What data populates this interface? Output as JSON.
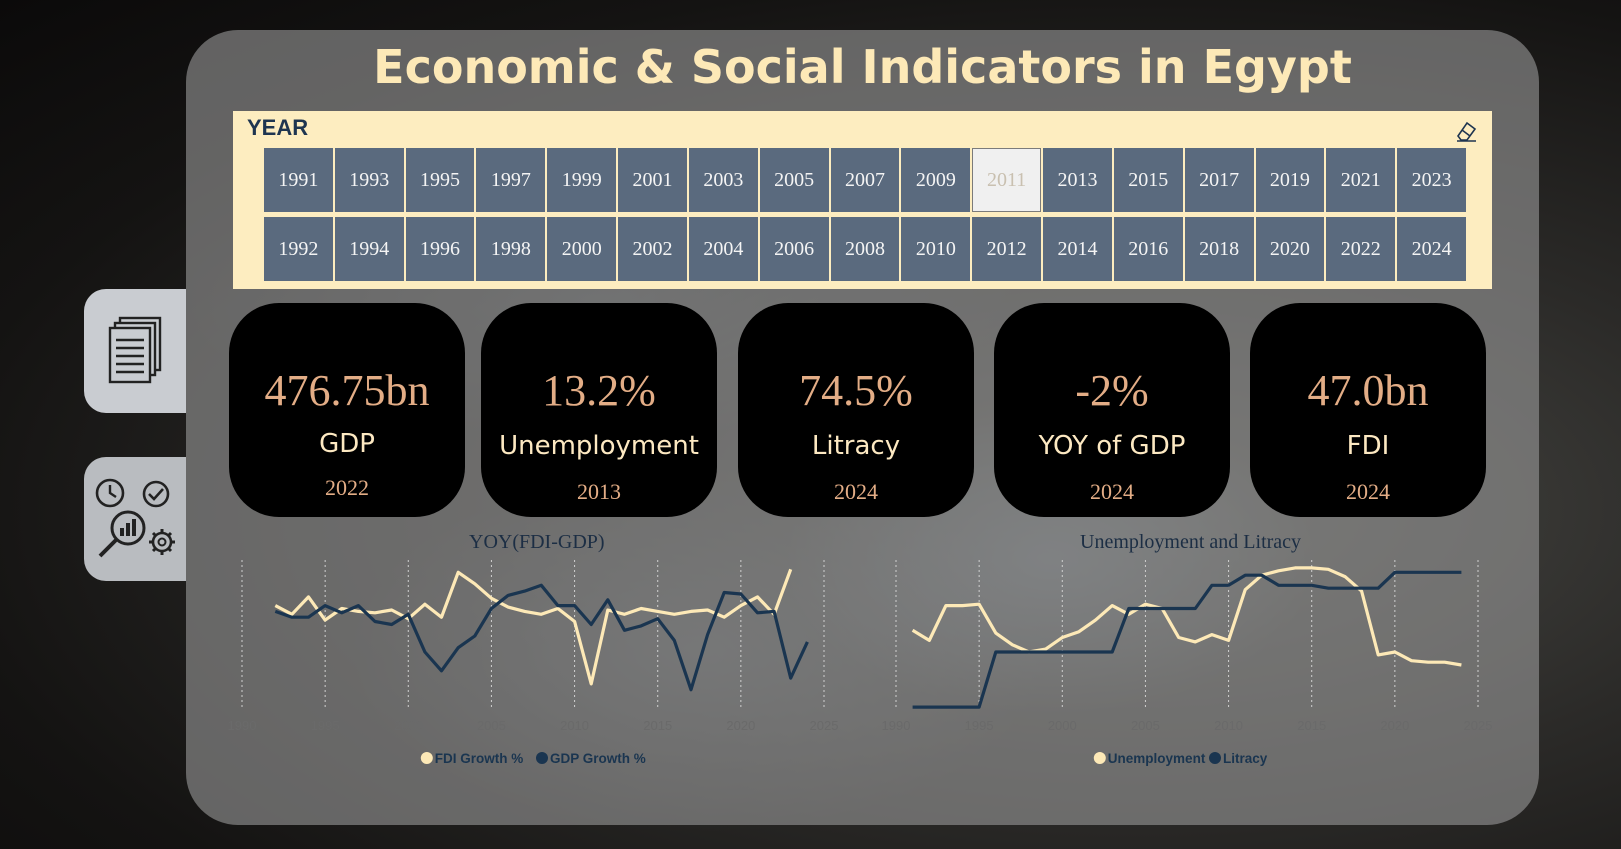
{
  "title": "Economic & Social Indicators in Egypt",
  "slicer": {
    "label": "YEAR",
    "selected": "2011",
    "years_row1": [
      "1991",
      "1993",
      "1995",
      "1997",
      "1999",
      "2001",
      "2003",
      "2005",
      "2007",
      "2009",
      "2011",
      "2013",
      "2015",
      "2017",
      "2019",
      "2021",
      "2023"
    ],
    "years_row2": [
      "1992",
      "1994",
      "1996",
      "1998",
      "2000",
      "2002",
      "2004",
      "2006",
      "2008",
      "2010",
      "2012",
      "2014",
      "2016",
      "2018",
      "2020",
      "2022",
      "2024"
    ]
  },
  "nav": {
    "tab1_icon": "document-pages-icon",
    "tab2_icon": "analytics-settings-icon"
  },
  "kpis": [
    {
      "value": "476.75bn",
      "label": "GDP",
      "year": "2022"
    },
    {
      "value": "13.2%",
      "label": "Unemployment",
      "year": "2013"
    },
    {
      "value": "74.5%",
      "label": "Litracy",
      "year": "2024"
    },
    {
      "value": "-2%",
      "label": "YOY of GDP",
      "year": "2024"
    },
    {
      "value": "47.0bn",
      "label": "FDI",
      "year": "2024"
    }
  ],
  "colors": {
    "series_light": "#fde9b7",
    "series_dark": "#1a3550",
    "kpi_value": "#e3ad86",
    "title": "#fde9b7"
  },
  "chart_data": [
    {
      "type": "line",
      "title": "YOY(FDI-GDP)",
      "x": [
        1992,
        1993,
        1994,
        1995,
        1996,
        1997,
        1998,
        1999,
        2000,
        2001,
        2002,
        2003,
        2004,
        2005,
        2006,
        2007,
        2008,
        2009,
        2010,
        2011,
        2012,
        2013,
        2014,
        2015,
        2016,
        2017,
        2018,
        2019,
        2020,
        2021,
        2022,
        2023,
        2024
      ],
      "xticks": [
        1990,
        1995,
        2000,
        2005,
        2010,
        2015,
        2020,
        2025
      ],
      "xlim": [
        1990,
        2025
      ],
      "ylim": [
        0,
        100
      ],
      "series": [
        {
          "name": "FDI Growth %",
          "color": "#fde9b7",
          "values": [
            72,
            66,
            78,
            62,
            70,
            68,
            67,
            69,
            63,
            73,
            64,
            95,
            87,
            77,
            71,
            68,
            66,
            70,
            61,
            18,
            69,
            66,
            70,
            68,
            66,
            68,
            69,
            64,
            72,
            78,
            66,
            97,
            null
          ]
        },
        {
          "name": "GDP Growth %",
          "color": "#1a3550",
          "values": [
            68,
            64,
            64,
            72,
            67,
            72,
            61,
            59,
            66,
            40,
            27,
            43,
            51,
            70,
            79,
            82,
            86,
            72,
            72,
            59,
            76,
            55,
            58,
            63,
            48,
            14,
            52,
            81,
            80,
            67,
            68,
            22,
            47
          ]
        }
      ],
      "legend": [
        "FDI Growth %",
        "GDP Growth %"
      ]
    },
    {
      "type": "line",
      "title": "Unemployment and Litracy",
      "x": [
        1991,
        1992,
        1993,
        1994,
        1995,
        1996,
        1997,
        1998,
        1999,
        2000,
        2001,
        2002,
        2003,
        2004,
        2005,
        2006,
        2007,
        2008,
        2009,
        2010,
        2011,
        2012,
        2013,
        2014,
        2015,
        2016,
        2017,
        2018,
        2019,
        2020,
        2021,
        2022,
        2023,
        2024
      ],
      "xticks": [
        1990,
        1995,
        2000,
        2005,
        2010,
        2015,
        2020,
        2025
      ],
      "xlim": [
        1990,
        2025
      ],
      "ylim": [
        0,
        100
      ],
      "series": [
        {
          "name": "Unemployment",
          "color": "#fde9b7",
          "values": [
            55,
            48,
            72,
            72,
            73,
            53,
            45,
            40,
            42,
            50,
            54,
            62,
            72,
            66,
            73,
            70,
            50,
            47,
            52,
            48,
            83,
            93,
            96,
            98,
            98,
            97,
            92,
            82,
            38,
            40,
            34,
            33,
            33,
            31
          ]
        },
        {
          "name": "Litracy",
          "color": "#1a3550",
          "values": [
            2,
            2,
            2,
            2,
            2,
            40,
            40,
            40,
            40,
            40,
            40,
            40,
            40,
            70,
            70,
            70,
            70,
            70,
            86,
            86,
            93,
            93,
            86,
            86,
            86,
            84,
            84,
            84,
            84,
            95,
            95,
            95,
            95,
            95
          ]
        }
      ],
      "legend": [
        "Unemployment",
        "Litracy"
      ]
    }
  ]
}
